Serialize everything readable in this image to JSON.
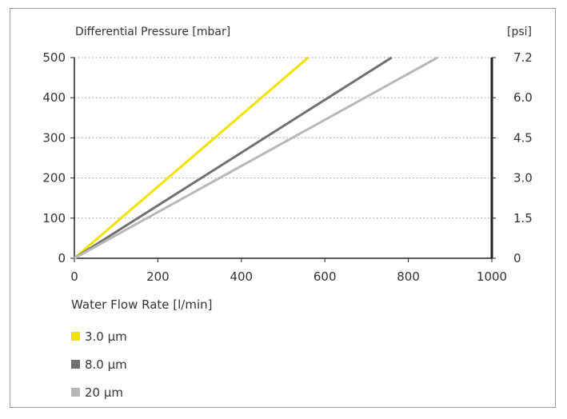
{
  "chart_data": {
    "type": "line",
    "ylabel": "Differential Pressure [mbar]",
    "ylabel_right": "[psi]",
    "xlabel": "Water Flow Rate [l/min]",
    "xlim": [
      0,
      1000
    ],
    "ylim": [
      0,
      500
    ],
    "x_ticks": [
      "0",
      "200",
      "400",
      "600",
      "800",
      "1000"
    ],
    "y_ticks": [
      "0",
      "100",
      "200",
      "300",
      "400",
      "500"
    ],
    "y_right_ticks": [
      "0",
      "1.5",
      "3.0",
      "4.5",
      "6.0",
      "7.2"
    ],
    "grid": "dotted horizontal",
    "series": [
      {
        "name": "3.0 µm",
        "color": "#f2e200",
        "x": [
          0,
          560
        ],
        "y": [
          0,
          500
        ]
      },
      {
        "name": "8.0 µm",
        "color": "#707070",
        "x": [
          0,
          760
        ],
        "y": [
          0,
          500
        ]
      },
      {
        "name": "20 µm",
        "color": "#b8b8b8",
        "x": [
          0,
          870
        ],
        "y": [
          0,
          500
        ]
      }
    ]
  }
}
